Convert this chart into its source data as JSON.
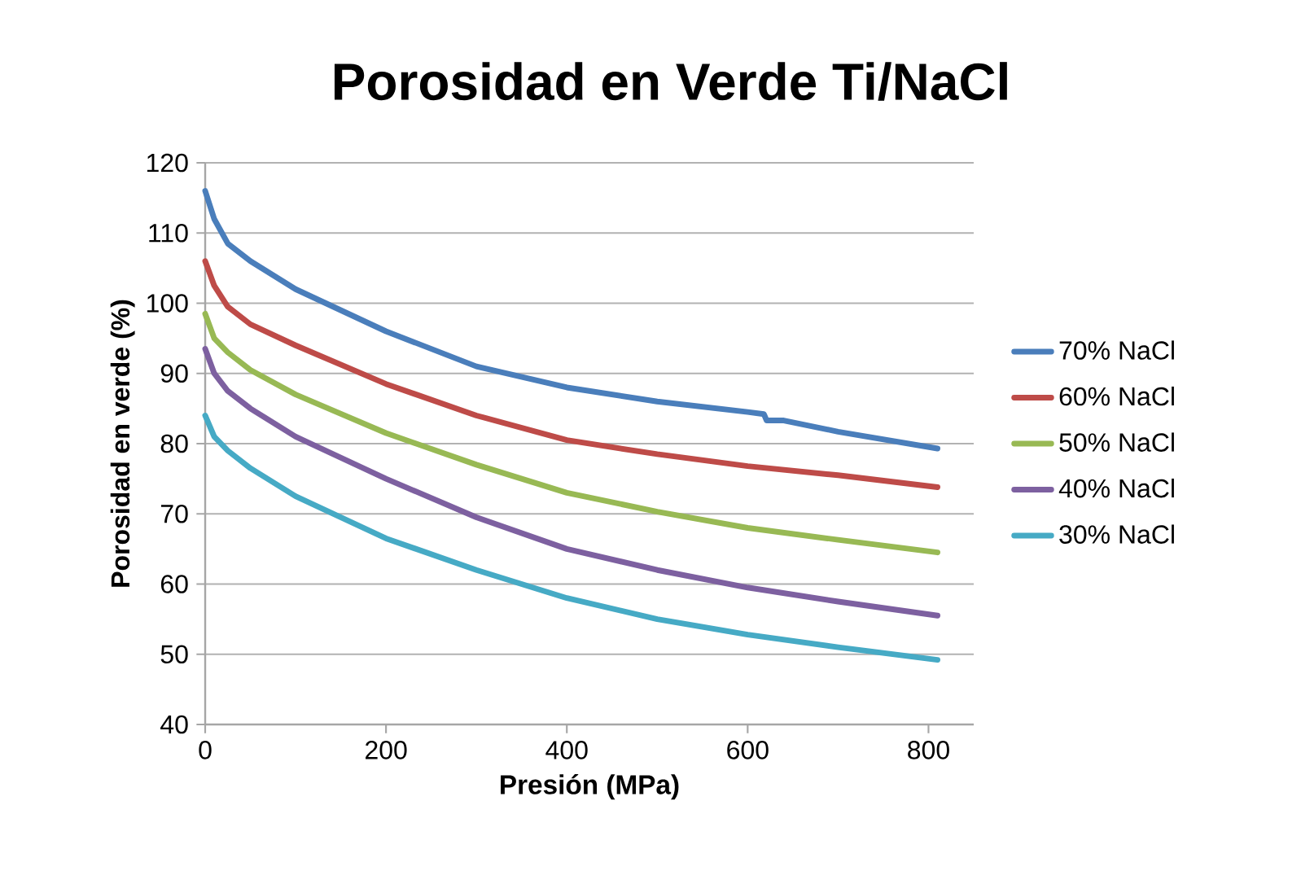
{
  "chart_data": {
    "type": "line",
    "title": "Porosidad en Verde  Ti/NaCl",
    "xlabel": "Presión (MPa)",
    "ylabel": "Porosidad en verde (%)",
    "xlim": [
      0,
      850
    ],
    "xticks": [
      0,
      200,
      400,
      600,
      800
    ],
    "ylim": [
      40,
      120
    ],
    "yticks": [
      40,
      50,
      60,
      70,
      80,
      90,
      100,
      110,
      120
    ],
    "grid": "y",
    "legend": "right",
    "marker": "none",
    "line_style": "solid",
    "series": [
      {
        "name": "70% NaCl",
        "color": "#4a7ebb",
        "x": [
          0,
          10,
          25,
          50,
          100,
          200,
          300,
          400,
          500,
          600,
          618,
          621,
          640,
          700,
          810
        ],
        "values": [
          116,
          112,
          108.5,
          106,
          102,
          96,
          91,
          88,
          86,
          84.5,
          84.2,
          83.3,
          83.3,
          81.7,
          79.3
        ]
      },
      {
        "name": "60% NaCl",
        "color": "#be4b48",
        "x": [
          0,
          10,
          25,
          50,
          100,
          200,
          300,
          400,
          500,
          600,
          700,
          810
        ],
        "values": [
          106,
          102.5,
          99.5,
          97,
          94,
          88.5,
          84,
          80.5,
          78.5,
          76.8,
          75.5,
          73.8
        ]
      },
      {
        "name": "50% NaCl",
        "color": "#98b954",
        "x": [
          0,
          10,
          25,
          50,
          100,
          200,
          300,
          400,
          500,
          600,
          700,
          810
        ],
        "values": [
          98.5,
          95,
          93,
          90.5,
          87,
          81.5,
          77,
          73,
          70.3,
          68,
          66.3,
          64.5
        ]
      },
      {
        "name": "40% NaCl",
        "color": "#7d60a0",
        "x": [
          0,
          10,
          25,
          50,
          100,
          200,
          300,
          400,
          500,
          600,
          700,
          810
        ],
        "values": [
          93.5,
          90,
          87.5,
          85,
          81,
          75,
          69.5,
          65,
          62,
          59.5,
          57.5,
          55.5
        ]
      },
      {
        "name": "30% NaCl",
        "color": "#46aac5",
        "x": [
          0,
          10,
          25,
          50,
          100,
          200,
          300,
          400,
          500,
          600,
          700,
          810
        ],
        "values": [
          84,
          81,
          79,
          76.5,
          72.5,
          66.5,
          62,
          58,
          55,
          52.8,
          51,
          49.2
        ]
      }
    ]
  }
}
